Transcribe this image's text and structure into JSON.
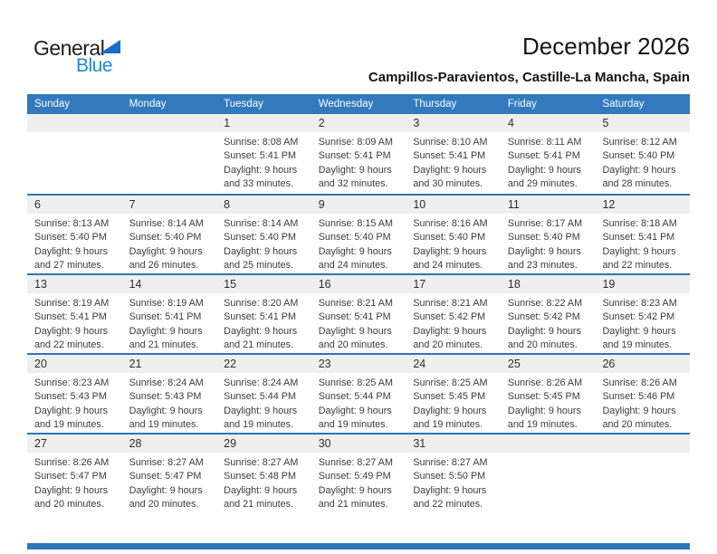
{
  "logo": {
    "text_black": "General",
    "text_blue": "Blue"
  },
  "header": {
    "title": "December 2026",
    "location": "Campillos-Paravientos, Castille-La Mancha, Spain"
  },
  "colors": {
    "header_bar": "#3279bd",
    "row_separator": "#2e74b8",
    "day_band": "#efefef",
    "footer_bar": "#2e74b8",
    "logo_blue": "#1e88d2",
    "logo_triangle": "#1a6fc4"
  },
  "weekdays": [
    "Sunday",
    "Monday",
    "Tuesday",
    "Wednesday",
    "Thursday",
    "Friday",
    "Saturday"
  ],
  "weeks": [
    [
      null,
      null,
      {
        "day": "1",
        "lines": [
          "Sunrise: 8:08 AM",
          "Sunset: 5:41 PM",
          "Daylight: 9 hours",
          "and 33 minutes."
        ]
      },
      {
        "day": "2",
        "lines": [
          "Sunrise: 8:09 AM",
          "Sunset: 5:41 PM",
          "Daylight: 9 hours",
          "and 32 minutes."
        ]
      },
      {
        "day": "3",
        "lines": [
          "Sunrise: 8:10 AM",
          "Sunset: 5:41 PM",
          "Daylight: 9 hours",
          "and 30 minutes."
        ]
      },
      {
        "day": "4",
        "lines": [
          "Sunrise: 8:11 AM",
          "Sunset: 5:41 PM",
          "Daylight: 9 hours",
          "and 29 minutes."
        ]
      },
      {
        "day": "5",
        "lines": [
          "Sunrise: 8:12 AM",
          "Sunset: 5:40 PM",
          "Daylight: 9 hours",
          "and 28 minutes."
        ]
      }
    ],
    [
      {
        "day": "6",
        "lines": [
          "Sunrise: 8:13 AM",
          "Sunset: 5:40 PM",
          "Daylight: 9 hours",
          "and 27 minutes."
        ]
      },
      {
        "day": "7",
        "lines": [
          "Sunrise: 8:14 AM",
          "Sunset: 5:40 PM",
          "Daylight: 9 hours",
          "and 26 minutes."
        ]
      },
      {
        "day": "8",
        "lines": [
          "Sunrise: 8:14 AM",
          "Sunset: 5:40 PM",
          "Daylight: 9 hours",
          "and 25 minutes."
        ]
      },
      {
        "day": "9",
        "lines": [
          "Sunrise: 8:15 AM",
          "Sunset: 5:40 PM",
          "Daylight: 9 hours",
          "and 24 minutes."
        ]
      },
      {
        "day": "10",
        "lines": [
          "Sunrise: 8:16 AM",
          "Sunset: 5:40 PM",
          "Daylight: 9 hours",
          "and 24 minutes."
        ]
      },
      {
        "day": "11",
        "lines": [
          "Sunrise: 8:17 AM",
          "Sunset: 5:40 PM",
          "Daylight: 9 hours",
          "and 23 minutes."
        ]
      },
      {
        "day": "12",
        "lines": [
          "Sunrise: 8:18 AM",
          "Sunset: 5:41 PM",
          "Daylight: 9 hours",
          "and 22 minutes."
        ]
      }
    ],
    [
      {
        "day": "13",
        "lines": [
          "Sunrise: 8:19 AM",
          "Sunset: 5:41 PM",
          "Daylight: 9 hours",
          "and 22 minutes."
        ]
      },
      {
        "day": "14",
        "lines": [
          "Sunrise: 8:19 AM",
          "Sunset: 5:41 PM",
          "Daylight: 9 hours",
          "and 21 minutes."
        ]
      },
      {
        "day": "15",
        "lines": [
          "Sunrise: 8:20 AM",
          "Sunset: 5:41 PM",
          "Daylight: 9 hours",
          "and 21 minutes."
        ]
      },
      {
        "day": "16",
        "lines": [
          "Sunrise: 8:21 AM",
          "Sunset: 5:41 PM",
          "Daylight: 9 hours",
          "and 20 minutes."
        ]
      },
      {
        "day": "17",
        "lines": [
          "Sunrise: 8:21 AM",
          "Sunset: 5:42 PM",
          "Daylight: 9 hours",
          "and 20 minutes."
        ]
      },
      {
        "day": "18",
        "lines": [
          "Sunrise: 8:22 AM",
          "Sunset: 5:42 PM",
          "Daylight: 9 hours",
          "and 20 minutes."
        ]
      },
      {
        "day": "19",
        "lines": [
          "Sunrise: 8:23 AM",
          "Sunset: 5:42 PM",
          "Daylight: 9 hours",
          "and 19 minutes."
        ]
      }
    ],
    [
      {
        "day": "20",
        "lines": [
          "Sunrise: 8:23 AM",
          "Sunset: 5:43 PM",
          "Daylight: 9 hours",
          "and 19 minutes."
        ]
      },
      {
        "day": "21",
        "lines": [
          "Sunrise: 8:24 AM",
          "Sunset: 5:43 PM",
          "Daylight: 9 hours",
          "and 19 minutes."
        ]
      },
      {
        "day": "22",
        "lines": [
          "Sunrise: 8:24 AM",
          "Sunset: 5:44 PM",
          "Daylight: 9 hours",
          "and 19 minutes."
        ]
      },
      {
        "day": "23",
        "lines": [
          "Sunrise: 8:25 AM",
          "Sunset: 5:44 PM",
          "Daylight: 9 hours",
          "and 19 minutes."
        ]
      },
      {
        "day": "24",
        "lines": [
          "Sunrise: 8:25 AM",
          "Sunset: 5:45 PM",
          "Daylight: 9 hours",
          "and 19 minutes."
        ]
      },
      {
        "day": "25",
        "lines": [
          "Sunrise: 8:26 AM",
          "Sunset: 5:45 PM",
          "Daylight: 9 hours",
          "and 19 minutes."
        ]
      },
      {
        "day": "26",
        "lines": [
          "Sunrise: 8:26 AM",
          "Sunset: 5:46 PM",
          "Daylight: 9 hours",
          "and 20 minutes."
        ]
      }
    ],
    [
      {
        "day": "27",
        "lines": [
          "Sunrise: 8:26 AM",
          "Sunset: 5:47 PM",
          "Daylight: 9 hours",
          "and 20 minutes."
        ]
      },
      {
        "day": "28",
        "lines": [
          "Sunrise: 8:27 AM",
          "Sunset: 5:47 PM",
          "Daylight: 9 hours",
          "and 20 minutes."
        ]
      },
      {
        "day": "29",
        "lines": [
          "Sunrise: 8:27 AM",
          "Sunset: 5:48 PM",
          "Daylight: 9 hours",
          "and 21 minutes."
        ]
      },
      {
        "day": "30",
        "lines": [
          "Sunrise: 8:27 AM",
          "Sunset: 5:49 PM",
          "Daylight: 9 hours",
          "and 21 minutes."
        ]
      },
      {
        "day": "31",
        "lines": [
          "Sunrise: 8:27 AM",
          "Sunset: 5:50 PM",
          "Daylight: 9 hours",
          "and 22 minutes."
        ]
      },
      null,
      null
    ]
  ]
}
